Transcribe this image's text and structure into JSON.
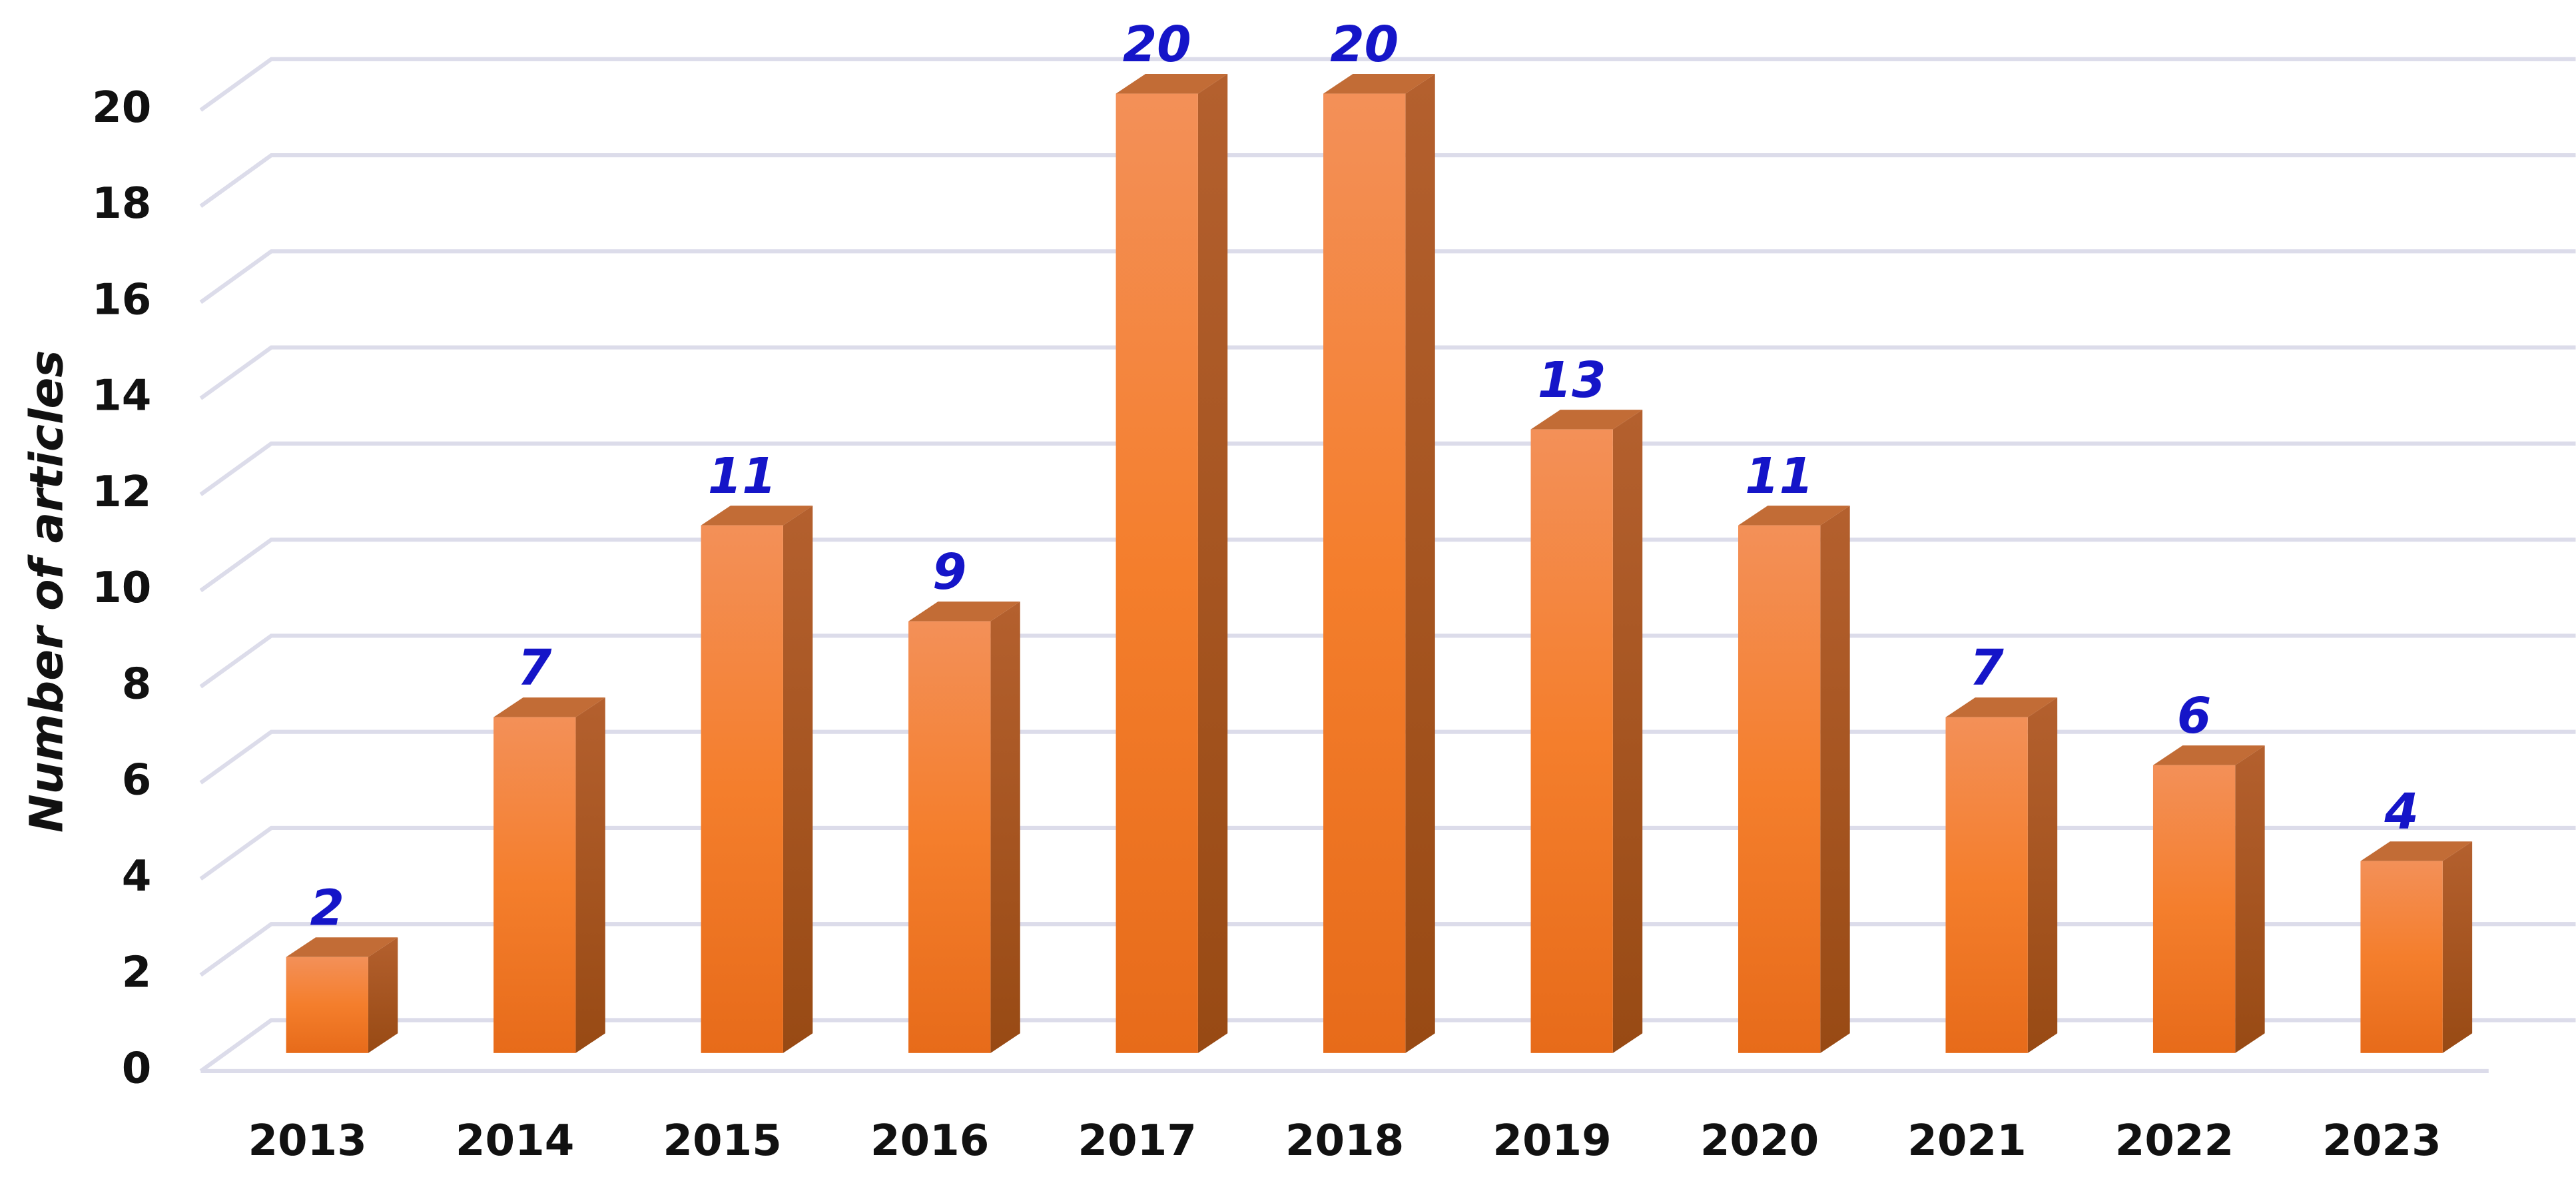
{
  "chart_data": {
    "type": "bar",
    "y_label": "Number of articles",
    "categories": [
      "2013",
      "2014",
      "2015",
      "2016",
      "2017",
      "2018",
      "2019",
      "2020",
      "2021",
      "2022",
      "2023"
    ],
    "values": [
      2,
      7,
      11,
      9,
      20,
      20,
      13,
      11,
      7,
      6,
      4
    ],
    "color": "#f47e2c",
    "ylim": [
      0,
      20
    ],
    "yticks": [
      0,
      2,
      4,
      6,
      8,
      10,
      12,
      14,
      16,
      18,
      20
    ],
    "grid": true
  }
}
